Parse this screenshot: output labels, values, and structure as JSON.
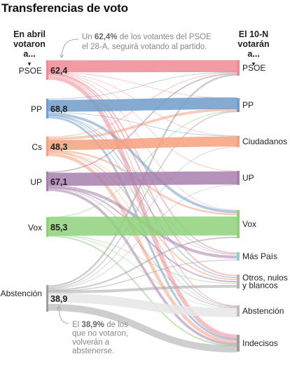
{
  "title": "Transferencias de voto",
  "left_header": [
    "En abril",
    "votaron a..."
  ],
  "right_header": [
    "El 10-N",
    "votarán a..."
  ],
  "caret_glyph": "▼",
  "annotations": {
    "top": {
      "lines": [
        [
          {
            "t": "Un ",
            "b": false
          },
          {
            "t": "62,4%",
            "b": true
          },
          {
            "t": " de los votantes del PSOE",
            "b": false
          }
        ],
        [
          {
            "t": "el 28-A, seguirá votando al partido.",
            "b": false
          }
        ]
      ]
    },
    "bottom": {
      "lines": [
        [
          {
            "t": "El ",
            "b": false
          },
          {
            "t": "38,9%",
            "b": true
          },
          {
            "t": " de los",
            "b": false
          }
        ],
        [
          {
            "t": "que no votaron,",
            "b": false
          }
        ],
        [
          {
            "t": "volverán a",
            "b": false
          }
        ],
        [
          {
            "t": "abstenerse.",
            "b": false
          }
        ]
      ]
    }
  },
  "chart_data": {
    "type": "sankey",
    "title": "Transferencias de voto",
    "unit": "% de los votantes de cada origen",
    "sources": [
      {
        "id": "psoe",
        "label": "PSOE",
        "value_label": "62,4",
        "loyalty": 62.4,
        "color": "#ef8a95"
      },
      {
        "id": "pp",
        "label": "PP",
        "value_label": "68,8",
        "loyalty": 68.8,
        "color": "#6e9ecb"
      },
      {
        "id": "cs",
        "label": "Cs",
        "value_label": "48,3",
        "loyalty": 48.3,
        "color": "#f6a07e"
      },
      {
        "id": "up",
        "label": "UP",
        "value_label": "67,1",
        "loyalty": 67.1,
        "color": "#a87fad"
      },
      {
        "id": "vox",
        "label": "Vox",
        "value_label": "85,3",
        "loyalty": 85.3,
        "color": "#8dd27a"
      },
      {
        "id": "abst",
        "label": "Abstención",
        "value_label": "38,9",
        "loyalty": 38.9,
        "color": "#bdbdbd"
      }
    ],
    "destinations": [
      {
        "id": "psoe",
        "label": [
          "PSOE"
        ],
        "color": "#ef8a95"
      },
      {
        "id": "pp",
        "label": [
          "PP"
        ],
        "color": "#6e9ecb"
      },
      {
        "id": "cs",
        "label": [
          "Ciudadanos"
        ],
        "color": "#f6a07e"
      },
      {
        "id": "up",
        "label": [
          "UP"
        ],
        "color": "#a87fad"
      },
      {
        "id": "vox",
        "label": [
          "Vox"
        ],
        "color": "#8dd27a"
      },
      {
        "id": "mp",
        "label": [
          "Más País"
        ],
        "color": "#7fd8d6"
      },
      {
        "id": "otros",
        "label": [
          "Otros, nulos",
          "y blancos"
        ],
        "color": "#cfcfcf"
      },
      {
        "id": "abst",
        "label": [
          "Abstención"
        ],
        "color": "#e3e3e3"
      },
      {
        "id": "indec",
        "label": [
          "Indecisos"
        ],
        "color": "#a9a9a9"
      }
    ],
    "flows": [
      {
        "from": "psoe",
        "to": "psoe",
        "value": 62.4
      },
      {
        "from": "psoe",
        "to": "pp",
        "value": 1
      },
      {
        "from": "psoe",
        "to": "cs",
        "value": 0.5
      },
      {
        "from": "psoe",
        "to": "up",
        "value": 2
      },
      {
        "from": "psoe",
        "to": "vox",
        "value": 1
      },
      {
        "from": "psoe",
        "to": "mp",
        "value": 3
      },
      {
        "from": "psoe",
        "to": "otros",
        "value": 2
      },
      {
        "from": "psoe",
        "to": "abst",
        "value": 4
      },
      {
        "from": "psoe",
        "to": "indec",
        "value": 24
      },
      {
        "from": "pp",
        "to": "psoe",
        "value": 1.5
      },
      {
        "from": "pp",
        "to": "pp",
        "value": 68.8
      },
      {
        "from": "pp",
        "to": "cs",
        "value": 1
      },
      {
        "from": "pp",
        "to": "vox",
        "value": 12
      },
      {
        "from": "pp",
        "to": "mp",
        "value": 0.3
      },
      {
        "from": "pp",
        "to": "otros",
        "value": 1.4
      },
      {
        "from": "pp",
        "to": "abst",
        "value": 3
      },
      {
        "from": "pp",
        "to": "indec",
        "value": 12
      },
      {
        "from": "cs",
        "to": "psoe",
        "value": 4
      },
      {
        "from": "cs",
        "to": "pp",
        "value": 15
      },
      {
        "from": "cs",
        "to": "cs",
        "value": 48.3
      },
      {
        "from": "cs",
        "to": "vox",
        "value": 8
      },
      {
        "from": "cs",
        "to": "mp",
        "value": 1
      },
      {
        "from": "cs",
        "to": "otros",
        "value": 2
      },
      {
        "from": "cs",
        "to": "abst",
        "value": 3
      },
      {
        "from": "cs",
        "to": "indec",
        "value": 18.7
      },
      {
        "from": "up",
        "to": "psoe",
        "value": 6
      },
      {
        "from": "up",
        "to": "up",
        "value": 67.1
      },
      {
        "from": "up",
        "to": "mp",
        "value": 7
      },
      {
        "from": "up",
        "to": "otros",
        "value": 2
      },
      {
        "from": "up",
        "to": "abst",
        "value": 3
      },
      {
        "from": "up",
        "to": "indec",
        "value": 14.9
      },
      {
        "from": "vox",
        "to": "pp",
        "value": 4
      },
      {
        "from": "vox",
        "to": "vox",
        "value": 85.3
      },
      {
        "from": "vox",
        "to": "otros",
        "value": 1
      },
      {
        "from": "vox",
        "to": "abst",
        "value": 2
      },
      {
        "from": "vox",
        "to": "indec",
        "value": 7.7
      },
      {
        "from": "abst",
        "to": "psoe",
        "value": 8
      },
      {
        "from": "abst",
        "to": "pp",
        "value": 5
      },
      {
        "from": "abst",
        "to": "cs",
        "value": 1
      },
      {
        "from": "abst",
        "to": "up",
        "value": 2
      },
      {
        "from": "abst",
        "to": "vox",
        "value": 6
      },
      {
        "from": "abst",
        "to": "mp",
        "value": 2
      },
      {
        "from": "abst",
        "to": "otros",
        "value": 4
      },
      {
        "from": "abst",
        "to": "abst",
        "value": 38.9
      },
      {
        "from": "abst",
        "to": "indec",
        "value": 33.1
      }
    ]
  }
}
